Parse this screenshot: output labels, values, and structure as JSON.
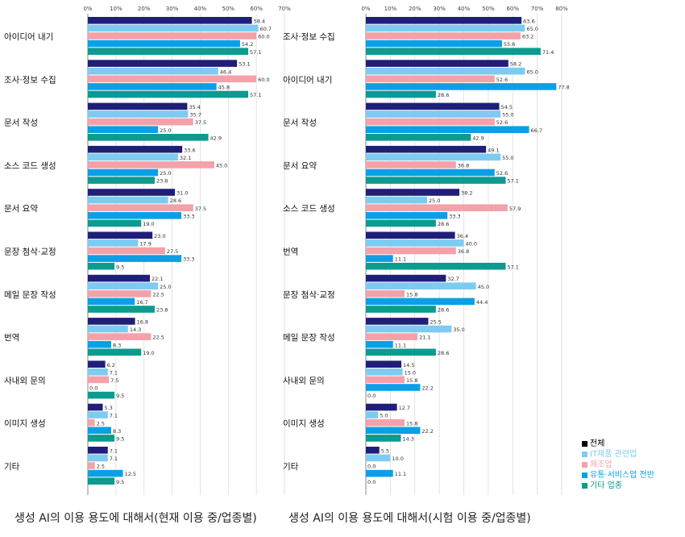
{
  "colors": {
    "전체": "#1f1f7a",
    "IT제품 관련업": "#7ecbf2",
    "제조업": "#f4a1a9",
    "유통·서비스업 전반": "#0aa0e6",
    "기타 업종": "#0b9b8f"
  },
  "legend": {
    "items": [
      {
        "name": "전체",
        "text_color": "#000000"
      },
      {
        "name": "IT제품 관련업",
        "text_color": "#7ecbf2"
      },
      {
        "name": "제조업",
        "text_color": "#f4a1a9"
      },
      {
        "name": "유통·서비스업 전반",
        "text_color": "#0aa0e6"
      },
      {
        "name": "기타 업종",
        "text_color": "#0b9b8f"
      }
    ]
  },
  "chart_data": [
    {
      "type": "bar",
      "orientation": "horizontal",
      "title": "생성 AI의 이용 용도에 대해서(현재 이용 중/업종별)",
      "xlim": [
        0,
        70
      ],
      "ticks": [
        "0%",
        "10%",
        "20%",
        "30%",
        "40%",
        "50%",
        "60%",
        "70%"
      ],
      "grid": true,
      "categories": [
        "아이디어 내기",
        "조사·정보 수집",
        "문서 작성",
        "소스 코드 생성",
        "문서 요약",
        "문장 첨삭·교정",
        "메일 문장 작성",
        "번역",
        "사내외 문의",
        "이미지 생성",
        "기타"
      ],
      "series": [
        {
          "name": "전체",
          "values": [
            58.4,
            53.1,
            35.4,
            33.6,
            31.0,
            23.0,
            22.1,
            16.8,
            6.2,
            5.3,
            7.1
          ]
        },
        {
          "name": "IT제품 관련업",
          "values": [
            60.7,
            46.4,
            35.7,
            32.1,
            28.6,
            17.9,
            25.0,
            14.3,
            7.1,
            7.1,
            7.1
          ]
        },
        {
          "name": "제조업",
          "values": [
            60.0,
            60.0,
            37.5,
            45.0,
            37.5,
            27.5,
            22.5,
            22.5,
            7.5,
            2.5,
            2.5
          ]
        },
        {
          "name": "유통·서비스업 전반",
          "values": [
            54.2,
            45.8,
            25.0,
            25.0,
            33.3,
            33.3,
            16.7,
            8.3,
            0.0,
            8.3,
            12.5
          ]
        },
        {
          "name": "기타 업종",
          "values": [
            57.1,
            57.1,
            42.9,
            23.8,
            19.0,
            9.5,
            23.8,
            19.0,
            9.5,
            9.5,
            9.5
          ]
        }
      ],
      "value_labels": [
        [
          "58.4",
          "53.1",
          "35.4",
          "33.6",
          "31.0",
          "23.0",
          "22.1",
          "16.8",
          "6.2",
          "5.3",
          "7.1"
        ],
        [
          "60.7",
          "46.4",
          "35.7",
          "32.1",
          "28.6",
          "17.9",
          "25.0",
          "14.3",
          "7.1",
          "7.1",
          "7.1"
        ],
        [
          "60.0",
          "60.0",
          "37.5",
          "45.0",
          "37.5",
          "27.5",
          "22.5",
          "22.5",
          "7.5",
          "2.5",
          "2.5"
        ],
        [
          "54.2",
          "45.8",
          "25.0",
          "25.0",
          "33.3",
          "33.3",
          "16.7",
          "8.3",
          "0.0",
          "8.3",
          "12.5"
        ],
        [
          "57.1",
          "57.1",
          "42.9",
          "23.8",
          "19.0",
          "9.5",
          "23.8",
          "19.0",
          "9.5",
          "9.5",
          "9.5"
        ]
      ]
    },
    {
      "type": "bar",
      "orientation": "horizontal",
      "title": "생성 AI의 이용 용도에 대해서(시험 이용 중/업종별)",
      "xlim": [
        0,
        80
      ],
      "ticks": [
        "0%",
        "10%",
        "20%",
        "30%",
        "40%",
        "50%",
        "60%",
        "70%",
        "80%"
      ],
      "grid": true,
      "categories": [
        "조사·정보 수집",
        "아이디어 내기",
        "문서 작성",
        "문서 요약",
        "소스 코드 생성",
        "번역",
        "문장 첨삭·교정",
        "메일 문장 작성",
        "사내외 문의",
        "이미지 생성",
        "기타"
      ],
      "series": [
        {
          "name": "전체",
          "values": [
            63.6,
            58.2,
            54.5,
            49.1,
            38.2,
            36.4,
            32.7,
            25.5,
            14.5,
            12.7,
            5.5
          ]
        },
        {
          "name": "IT제품 관련업",
          "values": [
            65.0,
            65.0,
            55.0,
            55.0,
            25.0,
            40.0,
            45.0,
            35.0,
            15.0,
            5.0,
            10.0
          ]
        },
        {
          "name": "제조업",
          "values": [
            63.2,
            52.6,
            52.6,
            36.8,
            57.9,
            36.8,
            15.8,
            21.1,
            15.8,
            15.8,
            0.0
          ]
        },
        {
          "name": "유통·서비스업 전반",
          "values": [
            55.6,
            77.8,
            66.7,
            52.6,
            33.3,
            11.1,
            44.4,
            11.1,
            22.2,
            22.2,
            11.1
          ]
        },
        {
          "name": "기타 업종",
          "values": [
            71.4,
            28.6,
            42.9,
            57.1,
            28.6,
            57.1,
            28.6,
            28.6,
            0.0,
            14.3,
            0.0
          ]
        }
      ],
      "value_labels": [
        [
          "63.6",
          "58.2",
          "54.5",
          "49.1",
          "38.2",
          "36.4",
          "32.7",
          "25.5",
          "14.5",
          "12.7",
          "5.5"
        ],
        [
          "65.0",
          "65.0",
          "55.0",
          "55.0",
          "25.0",
          "40.0",
          "45.0",
          "35.0",
          "15.0",
          "5.0",
          "10.0"
        ],
        [
          "63.2",
          "52.6",
          "52.6",
          "36.8",
          "57.9",
          "36.8",
          "15.8",
          "21.1",
          "15.8",
          "15.8",
          "0.0"
        ],
        [
          "55.6",
          "77.8",
          "66.7",
          "52.6",
          "33.3",
          "11.1",
          "44.4",
          "11.1",
          "22.2",
          "22.2",
          "11.1"
        ],
        [
          "71.4",
          "28.6",
          "42.9",
          "57.1",
          "28.6",
          "57.1",
          "28.6",
          "28.6",
          "0.0",
          "14.3",
          "0.0"
        ]
      ]
    }
  ]
}
